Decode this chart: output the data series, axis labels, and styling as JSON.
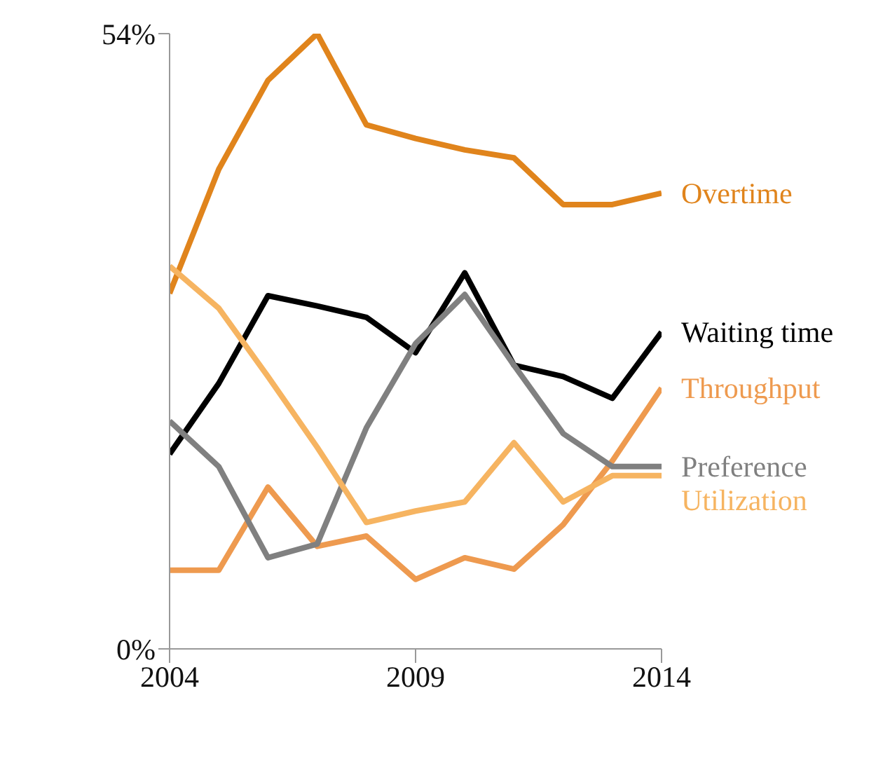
{
  "chart_data": {
    "type": "line",
    "x": [
      2004,
      2005,
      2006,
      2007,
      2008,
      2009,
      2010,
      2011,
      2012,
      2013,
      2014
    ],
    "xlim": [
      2004,
      2014
    ],
    "xticks": [
      2004,
      2009,
      2014
    ],
    "ylim": [
      0,
      54
    ],
    "yticks": [
      {
        "value": 0,
        "label": "0%"
      },
      {
        "value": 54,
        "label": "54%"
      }
    ],
    "grid": false,
    "legend": false,
    "marker": "none",
    "line_style": "solid",
    "series": [
      {
        "name": "Overtime",
        "color": "#e0841c",
        "values": [
          31.2,
          42.1,
          49.9,
          54,
          46.0,
          44.8,
          43.8,
          43.1,
          39.0,
          39.0,
          40.0
        ]
      },
      {
        "name": "Waiting time",
        "color": "#000000",
        "values": [
          17.1,
          23.3,
          31.0,
          30.1,
          29.1,
          26.0,
          33.0,
          24.9,
          23.9,
          22.0,
          27.8
        ]
      },
      {
        "name": "Throughput",
        "color": "#ee9a4f",
        "values": [
          6.9,
          6.9,
          14.2,
          9.0,
          9.9,
          6.1,
          8.0,
          7.0,
          10.9,
          16.5,
          22.9
        ]
      },
      {
        "name": "Preference",
        "color": "#808080",
        "values": [
          20.0,
          16.0,
          8.0,
          9.2,
          19.4,
          26.8,
          31.1,
          24.9,
          18.9,
          16.0,
          16.0
        ]
      },
      {
        "name": "Utilization",
        "color": "#f6b461",
        "values": [
          33.6,
          29.9,
          23.9,
          17.7,
          11.1,
          12.1,
          12.9,
          18.1,
          12.9,
          15.2,
          15.2
        ]
      }
    ]
  }
}
